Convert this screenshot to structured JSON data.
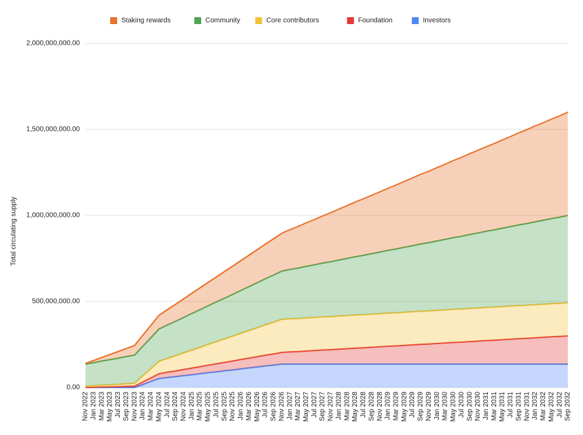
{
  "chart_data": {
    "type": "stacked_area",
    "y_label": "Total circulating supply",
    "categories": [
      "Nov 2022",
      "Jan 2023",
      "Mar 2023",
      "May 2023",
      "Jul 2023",
      "Sep 2023",
      "Nov 2023",
      "Jan 2024",
      "Mar 2024",
      "May 2024",
      "Jul 2024",
      "Sep 2024",
      "Nov 2024",
      "Jan 2025",
      "Mar 2025",
      "May 2025",
      "Jul 2025",
      "Sep 2025",
      "Nov 2025",
      "Jan 2026",
      "Mar 2026",
      "May 2026",
      "Jul 2026",
      "Sep 2026",
      "Nov 2026",
      "Jan 2027",
      "Mar 2027",
      "May 2027",
      "Jul 2027",
      "Sep 2027",
      "Nov 2027",
      "Jan 2028",
      "Mar 2028",
      "May 2028",
      "Jul 2028",
      "Sep 2028",
      "Nov 2028",
      "Jan 2029",
      "Mar 2029",
      "May 2029",
      "Jul 2029",
      "Sep 2029",
      "Nov 2029",
      "Jan 2030",
      "Mar 2030",
      "May 2030",
      "Jul 2030",
      "Sep 2030",
      "Nov 2030",
      "Jan 2031",
      "Mar 2031",
      "May 2031",
      "Jul 2031",
      "Sep 2031",
      "Nov 2031",
      "Jan 2032",
      "Mar 2032",
      "May 2032",
      "Jul 2032",
      "Sep 2032"
    ],
    "series": [
      {
        "name": "Staking rewards",
        "color": "#e8712b",
        "values": [
          4000000.0,
          13000000.0,
          21000000.0,
          30000000.0,
          39000000.0,
          47000000.0,
          56000000.0,
          64000000.0,
          72000000.0,
          80000000.0,
          89000000.0,
          99000000.0,
          108000000.0,
          117000000.0,
          127000000.0,
          136000000.0,
          145000000.0,
          155000000.0,
          164000000.0,
          173000000.0,
          183000000.0,
          192000000.0,
          201000000.0,
          211000000.0,
          220000000.0,
          231000000.0,
          242000000.0,
          253000000.0,
          263000000.0,
          274000000.0,
          285000000.0,
          296000000.0,
          307000000.0,
          318000000.0,
          329000000.0,
          339000000.0,
          350000000.0,
          361000000.0,
          372000000.0,
          383000000.0,
          394000000.0,
          405000000.0,
          415000000.0,
          426000000.0,
          437000000.0,
          448000000.0,
          459000000.0,
          470000000.0,
          481000000.0,
          491000000.0,
          502000000.0,
          513000000.0,
          524000000.0,
          535000000.0,
          546000000.0,
          557000000.0,
          567000000.0,
          578000000.0,
          589000000.0,
          600000000.0
        ]
      },
      {
        "name": "Community",
        "color": "#4fa552",
        "values": [
          128000000.0,
          134000000.0,
          140000000.0,
          146000000.0,
          152000000.0,
          158000000.0,
          164000000.0,
          172000000.0,
          180000000.0,
          188000000.0,
          194000000.0,
          200000000.0,
          206000000.0,
          213000000.0,
          219000000.0,
          225000000.0,
          231000000.0,
          237000000.0,
          243000000.0,
          249000000.0,
          255000000.0,
          262000000.0,
          268000000.0,
          274000000.0,
          280000000.0,
          287000000.0,
          293000000.0,
          300000000.0,
          306000000.0,
          313000000.0,
          319000000.0,
          326000000.0,
          332000000.0,
          339000000.0,
          345000000.0,
          352000000.0,
          358000000.0,
          365000000.0,
          371000000.0,
          378000000.0,
          384000000.0,
          391000000.0,
          397000000.0,
          404000000.0,
          410000000.0,
          417000000.0,
          423000000.0,
          430000000.0,
          436000000.0,
          443000000.0,
          449000000.0,
          456000000.0,
          462000000.0,
          469000000.0,
          475000000.0,
          482000000.0,
          488000000.0,
          495000000.0,
          501000000.0,
          508000000.0
        ]
      },
      {
        "name": "Core contributors",
        "color": "#f4c13a",
        "values": [
          8000000.0,
          9000000.0,
          11000000.0,
          12000000.0,
          13000000.0,
          15000000.0,
          16000000.0,
          35000000.0,
          53000000.0,
          72000000.0,
          80000000.0,
          88000000.0,
          96000000.0,
          104000000.0,
          112000000.0,
          120000000.0,
          128000000.0,
          136000000.0,
          144000000.0,
          152000000.0,
          160000000.0,
          168000000.0,
          176000000.0,
          184000000.0,
          192000000.0,
          192000000.0,
          192000000.0,
          192000000.0,
          192000000.0,
          192000000.0,
          192000000.0,
          192000000.0,
          192000000.0,
          192000000.0,
          192000000.0,
          192000000.0,
          192000000.0,
          192000000.0,
          192000000.0,
          192000000.0,
          192000000.0,
          192000000.0,
          192000000.0,
          192000000.0,
          192000000.0,
          192000000.0,
          192000000.0,
          192000000.0,
          192000000.0,
          192000000.0,
          192000000.0,
          192000000.0,
          192000000.0,
          192000000.0,
          192000000.0,
          192000000.0,
          192000000.0,
          192000000.0,
          192000000.0,
          192000000.0
        ]
      },
      {
        "name": "Foundation",
        "color": "#e53935",
        "values": [
          0,
          1000000.0,
          3000000.0,
          4000000.0,
          5000000.0,
          7000000.0,
          8000000.0,
          15000000.0,
          21000000.0,
          28000000.0,
          31000000.0,
          33000000.0,
          36000000.0,
          39000000.0,
          41000000.0,
          44000000.0,
          47000000.0,
          49000000.0,
          52000000.0,
          55000000.0,
          57000000.0,
          60000000.0,
          63000000.0,
          65000000.0,
          68000000.0,
          71000000.0,
          73000000.0,
          76000000.0,
          79000000.0,
          82000000.0,
          84000000.0,
          87000000.0,
          90000000.0,
          93000000.0,
          95000000.0,
          98000000.0,
          101000000.0,
          104000000.0,
          106000000.0,
          109000000.0,
          112000000.0,
          115000000.0,
          117000000.0,
          120000000.0,
          123000000.0,
          126000000.0,
          128000000.0,
          131000000.0,
          134000000.0,
          137000000.0,
          139000000.0,
          142000000.0,
          145000000.0,
          148000000.0,
          150000000.0,
          153000000.0,
          156000000.0,
          159000000.0,
          161000000.0,
          164000000.0
        ]
      },
      {
        "name": "Investors",
        "color": "#4f86f7",
        "values": [
          0,
          0,
          0,
          0,
          0,
          0,
          0,
          17000000.0,
          35000000.0,
          52000000.0,
          58000000.0,
          63000000.0,
          69000000.0,
          74000000.0,
          80000000.0,
          86000000.0,
          91000000.0,
          97000000.0,
          102000000.0,
          108000000.0,
          114000000.0,
          119000000.0,
          125000000.0,
          130000000.0,
          136000000.0,
          136000000.0,
          136000000.0,
          136000000.0,
          136000000.0,
          136000000.0,
          136000000.0,
          136000000.0,
          136000000.0,
          136000000.0,
          136000000.0,
          136000000.0,
          136000000.0,
          136000000.0,
          136000000.0,
          136000000.0,
          136000000.0,
          136000000.0,
          136000000.0,
          136000000.0,
          136000000.0,
          136000000.0,
          136000000.0,
          136000000.0,
          136000000.0,
          136000000.0,
          136000000.0,
          136000000.0,
          136000000.0,
          136000000.0,
          136000000.0,
          136000000.0,
          136000000.0,
          136000000.0,
          136000000.0,
          136000000.0
        ]
      }
    ],
    "ylim": [
      0,
      2000000000
    ],
    "yticks": [
      {
        "value": 0,
        "label": "0.00"
      },
      {
        "value": 500000000,
        "label": "500,000,000.00"
      },
      {
        "value": 1000000000,
        "label": "1,000,000,000.00"
      },
      {
        "value": 1500000000,
        "label": "1,500,000,000.00"
      },
      {
        "value": 2000000000,
        "label": "2,000,000,000.00"
      }
    ],
    "grid": true,
    "legend": "top"
  }
}
